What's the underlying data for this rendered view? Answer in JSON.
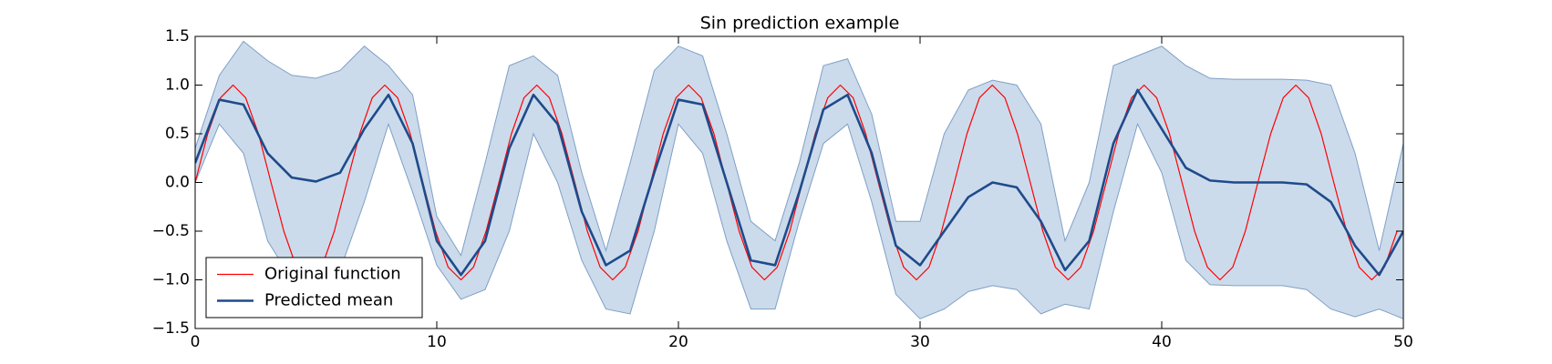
{
  "chart_data": {
    "type": "line",
    "title": "Sin prediction example",
    "xlim": [
      0,
      50
    ],
    "xticks": [
      0,
      10,
      20,
      30,
      40,
      50
    ],
    "ylim": [
      -1.5,
      1.5
    ],
    "yticks": [
      {
        "value": -1.5,
        "label": "−1.5"
      },
      {
        "value": -1.0,
        "label": "−1.0"
      },
      {
        "value": -0.5,
        "label": "−0.5"
      },
      {
        "value": 0,
        "label": "0.0"
      },
      0.5,
      {
        "value": 1.0,
        "label": "1.0"
      },
      1.5
    ],
    "grid": false,
    "legend": "lower left",
    "band": {
      "color": "#cbdbec",
      "edge_color": "#7f9fc4",
      "x": [
        0,
        1,
        2,
        3,
        4,
        5,
        6,
        7,
        8,
        9,
        10,
        11,
        12,
        13,
        14,
        15,
        16,
        17,
        18,
        19,
        20,
        21,
        22,
        23,
        24,
        25,
        26,
        27,
        28,
        29,
        30,
        31,
        32,
        33,
        34,
        35,
        36,
        37,
        38,
        39,
        40,
        41,
        42,
        43,
        44,
        45,
        46,
        47,
        48,
        49,
        50
      ],
      "upper": [
        0.35,
        1.1,
        1.45,
        1.25,
        1.1,
        1.07,
        1.15,
        1.4,
        1.2,
        0.9,
        -0.35,
        -0.75,
        0.2,
        1.2,
        1.3,
        1.1,
        0.1,
        -0.7,
        0.2,
        1.15,
        1.4,
        1.3,
        0.5,
        -0.4,
        -0.6,
        0.2,
        1.2,
        1.27,
        0.7,
        -0.4,
        -0.4,
        0.5,
        0.95,
        1.05,
        1.0,
        0.6,
        -0.6,
        0.0,
        1.2,
        1.3,
        1.4,
        1.2,
        1.07,
        1.06,
        1.06,
        1.06,
        1.05,
        1.0,
        0.3,
        -0.7,
        0.4
      ],
      "lower": [
        0.0,
        0.6,
        0.3,
        -0.6,
        -1.0,
        -1.07,
        -0.9,
        -0.2,
        0.6,
        -0.1,
        -0.85,
        -1.2,
        -1.1,
        -0.5,
        0.5,
        0.0,
        -0.8,
        -1.3,
        -1.35,
        -0.5,
        0.6,
        0.3,
        -0.6,
        -1.3,
        -1.3,
        -0.4,
        0.4,
        0.6,
        -0.2,
        -1.15,
        -1.4,
        -1.3,
        -1.12,
        -1.06,
        -1.1,
        -1.35,
        -1.25,
        -1.3,
        -0.3,
        0.6,
        0.1,
        -0.8,
        -1.05,
        -1.06,
        -1.06,
        -1.06,
        -1.1,
        -1.3,
        -1.38,
        -1.3,
        -1.4
      ]
    },
    "series": [
      {
        "name": "Original function",
        "color": "#ff0000",
        "width": 1.2,
        "x": [
          0,
          0.52,
          1.05,
          1.57,
          2.09,
          2.62,
          3.14,
          3.67,
          4.19,
          4.71,
          5.24,
          5.76,
          6.28,
          6.81,
          7.33,
          7.85,
          8.38,
          8.9,
          9.42,
          9.95,
          10.47,
          11.0,
          11.52,
          12.04,
          12.57,
          13.09,
          13.61,
          14.14,
          14.66,
          15.18,
          15.71,
          16.23,
          16.76,
          17.28,
          17.8,
          18.33,
          18.85,
          19.37,
          19.9,
          20.42,
          20.94,
          21.47,
          21.99,
          22.51,
          23.04,
          23.56,
          24.09,
          24.61,
          25.13,
          25.66,
          26.18,
          26.7,
          27.23,
          27.75,
          28.27,
          28.8,
          29.32,
          29.85,
          30.37,
          30.89,
          31.42,
          31.94,
          32.46,
          32.99,
          33.51,
          34.03,
          34.56,
          35.08,
          35.6,
          36.13,
          36.65,
          37.18,
          37.7,
          38.22,
          38.75,
          39.27,
          39.79,
          40.32,
          40.84,
          41.36,
          41.89,
          42.41,
          42.94,
          43.46,
          43.98,
          44.51,
          45.03,
          45.55,
          46.08,
          46.6,
          47.12,
          47.65,
          48.17,
          48.69,
          49.22,
          49.74
        ],
        "values": [
          0,
          0.5,
          0.87,
          1,
          0.87,
          0.5,
          0,
          -0.5,
          -0.87,
          -1,
          -0.87,
          -0.5,
          0,
          0.5,
          0.87,
          1,
          0.87,
          0.5,
          0,
          -0.5,
          -0.87,
          -1,
          -0.87,
          -0.5,
          0,
          0.5,
          0.87,
          1,
          0.87,
          0.5,
          0,
          -0.5,
          -0.87,
          -1,
          -0.87,
          -0.5,
          0,
          0.5,
          0.87,
          1,
          0.87,
          0.5,
          0,
          -0.5,
          -0.87,
          -1,
          -0.87,
          -0.5,
          0,
          0.5,
          0.87,
          1,
          0.87,
          0.5,
          0,
          -0.5,
          -0.87,
          -1,
          -0.87,
          -0.5,
          0,
          0.5,
          0.87,
          1,
          0.87,
          0.5,
          0,
          -0.5,
          -0.87,
          -1,
          -0.87,
          -0.5,
          0,
          0.5,
          0.87,
          1,
          0.87,
          0.5,
          0,
          -0.5,
          -0.87,
          -1,
          -0.87,
          -0.5,
          0,
          0.5,
          0.87,
          1,
          0.87,
          0.5,
          0,
          -0.5,
          -0.87,
          -1,
          -0.87,
          -0.5
        ]
      },
      {
        "name": "Predicted mean",
        "color": "#1f4a8a",
        "width": 2.6,
        "x": [
          0,
          1,
          2,
          3,
          4,
          5,
          6,
          7,
          8,
          9,
          10,
          11,
          12,
          13,
          14,
          15,
          16,
          17,
          18,
          19,
          20,
          21,
          22,
          23,
          24,
          25,
          26,
          27,
          28,
          29,
          30,
          31,
          32,
          33,
          34,
          35,
          36,
          37,
          38,
          39,
          40,
          41,
          42,
          43,
          44,
          45,
          46,
          47,
          48,
          49,
          50
        ],
        "values": [
          0.2,
          0.85,
          0.8,
          0.3,
          0.05,
          0.01,
          0.1,
          0.55,
          0.9,
          0.4,
          -0.6,
          -0.95,
          -0.6,
          0.35,
          0.9,
          0.6,
          -0.3,
          -0.85,
          -0.7,
          0.1,
          0.85,
          0.8,
          0.0,
          -0.8,
          -0.85,
          -0.1,
          0.75,
          0.9,
          0.3,
          -0.65,
          -0.85,
          -0.5,
          -0.15,
          0.0,
          -0.05,
          -0.4,
          -0.9,
          -0.6,
          0.4,
          0.95,
          0.55,
          0.15,
          0.02,
          0.0,
          0.0,
          0.0,
          -0.02,
          -0.2,
          -0.65,
          -0.95,
          -0.5
        ]
      }
    ]
  }
}
